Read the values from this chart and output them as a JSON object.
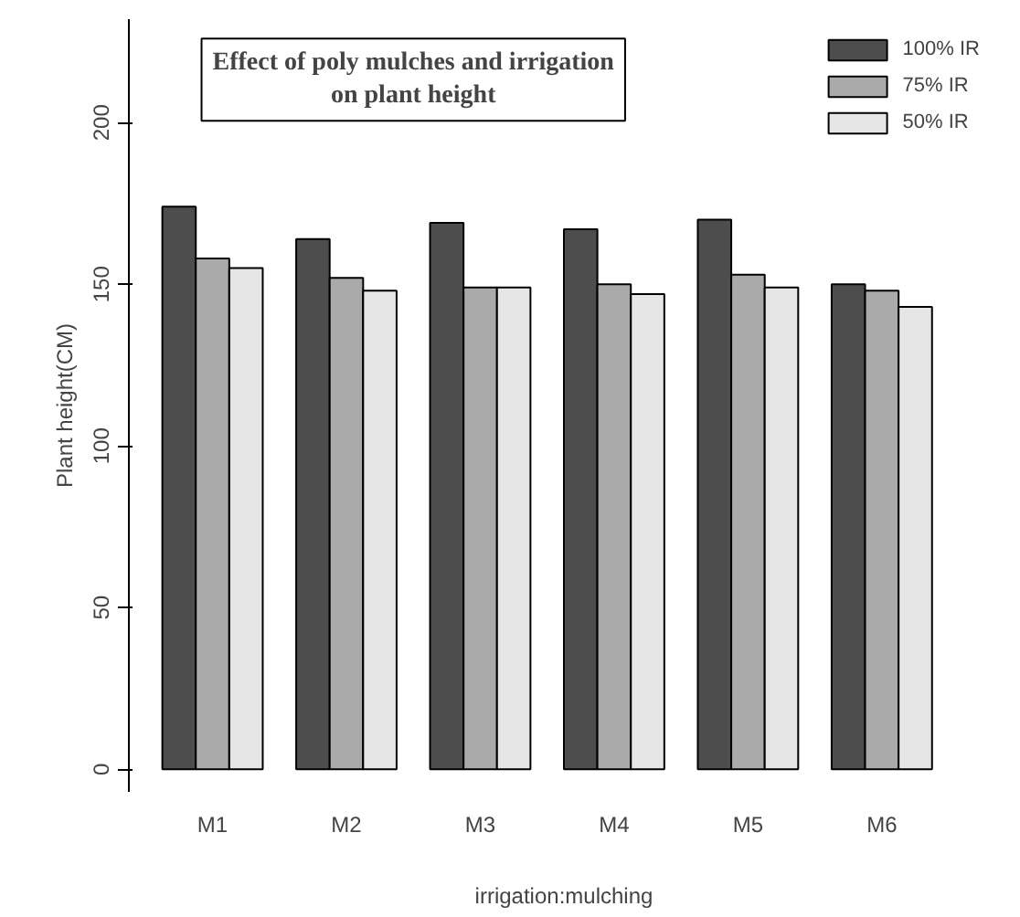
{
  "chart_data": {
    "type": "bar",
    "title": "Effect of poly mulches and irrigation\non plant height",
    "xlabel": "irrigation:mulching",
    "ylabel": "Plant height(CM)",
    "categories": [
      "M1",
      "M2",
      "M3",
      "M4",
      "M5",
      "M6"
    ],
    "series": [
      {
        "name": "100% IR",
        "color": "#4d4d4d",
        "values": [
          174,
          164,
          169,
          167,
          170,
          150
        ]
      },
      {
        "name": "75% IR",
        "color": "#aaaaaa",
        "values": [
          158,
          152,
          149,
          150,
          153,
          148
        ]
      },
      {
        "name": "50% IR",
        "color": "#e6e6e6",
        "values": [
          155,
          148,
          149,
          147,
          149,
          143
        ]
      }
    ],
    "ylim": [
      -7,
      232
    ],
    "yticks": [
      0,
      50,
      100,
      150,
      200
    ],
    "grid": false,
    "legend": "top right"
  }
}
